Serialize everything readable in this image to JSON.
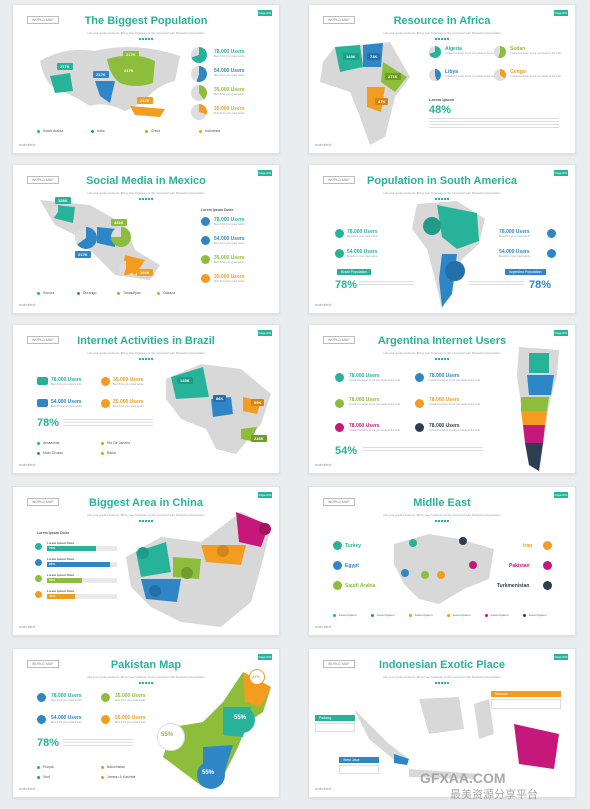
{
  "colors": {
    "teal": "#27b39a",
    "blue": "#2f86c7",
    "green": "#8cbe3c",
    "orange": "#f39c1f",
    "magenta": "#c6177b",
    "navy": "#2c3e50",
    "map": "#d8d8d8"
  },
  "common": {
    "tag": "WORLD MAP",
    "page": "Page 001",
    "sub": "just your great solutions. Bring your business to the next level with Powerful presentation",
    "brand": "unlimited"
  },
  "s1": {
    "title": "The Biggest Population",
    "pins": [
      "217K",
      "217K",
      "217K",
      "217K",
      "217K"
    ],
    "stats": [
      {
        "v": "78.000 Users",
        "t": "Best fit for your great words"
      },
      {
        "v": "54.000 Users",
        "t": "Best fit for your great words"
      },
      {
        "v": "35.000 Users",
        "t": "Best fit for your great words"
      },
      {
        "v": "35.000 Users",
        "t": "Best fit for your great words"
      }
    ],
    "legend": [
      "South Arabia",
      "India",
      "China",
      "Indonesia"
    ]
  },
  "s2": {
    "title": "Resource in Africa",
    "pins": [
      "143K",
      "73K",
      "271K",
      "47K"
    ],
    "items": [
      {
        "h": "Algeria",
        "t": "It would be better to put your ideas to the stuff"
      },
      {
        "h": "Sudan",
        "t": "It would be better to put your ideas to the stuff"
      },
      {
        "h": "Libya",
        "t": "It would be better to put your ideas to the stuff"
      },
      {
        "h": "Congo",
        "t": "It would be better to put your ideas to the stuff"
      }
    ],
    "lorem": "Lorem Ipsum",
    "pct": "48%"
  },
  "s3": {
    "title": "Social Media in Mexico",
    "pins": [
      "126K",
      "441K",
      "217K",
      "186K"
    ],
    "head": "Lorem Ipsum Dolor",
    "stats": [
      {
        "v": "78.000 Users",
        "t": "Best fit for your great words"
      },
      {
        "v": "54.000 Users",
        "t": "Best fit for your great words"
      },
      {
        "v": "35.000 Users",
        "t": "Best fit for your great words"
      },
      {
        "v": "35.000 Users",
        "t": "Best fit for your great words"
      }
    ],
    "legend": [
      "Sonora",
      "Durango",
      "Tamaulipas",
      "Oaxaca"
    ]
  },
  "s4": {
    "title": "Population in South America",
    "stats": [
      {
        "v": "78.000 Users",
        "t": "Benefit for your great words"
      },
      {
        "v": "54.000 Users",
        "t": "Benefit for your great words"
      },
      {
        "v": "78.000 Users",
        "t": "Benefit for your great words"
      },
      {
        "v": "54.000 Users",
        "t": "Benefit for your great words"
      }
    ],
    "rib1": "Brazil Population",
    "rib2": "Argentina Population",
    "pct1": "78%",
    "pct2": "78%"
  },
  "s5": {
    "title": "Internet Activities in Brazil",
    "pins": [
      "125K",
      "86K",
      "89K",
      "216K"
    ],
    "stats": [
      {
        "v": "78.000 Users",
        "t": "Best fit for your great words"
      },
      {
        "v": "35.000 Users",
        "t": "Best fit for your great words"
      },
      {
        "v": "54.000 Users",
        "t": "Best fit for your great words"
      },
      {
        "v": "35.000 Users",
        "t": "Best fit for your great words"
      }
    ],
    "pct": "78%",
    "legend": [
      "Amazonas",
      "Rio De Janeiro",
      "Mato Grosso",
      "Bahia"
    ]
  },
  "s6": {
    "title": "Argentina Internet Users",
    "stats": [
      {
        "v": "78.000 Users",
        "t": "It would be better to put your ideas to the stuff"
      },
      {
        "v": "78.000 Users",
        "t": "It would be better to put your ideas to the stuff"
      },
      {
        "v": "78.000 Users",
        "t": "It would be better to put your ideas to the stuff"
      },
      {
        "v": "78.000 Users",
        "t": "It would be better to put your ideas to the stuff"
      },
      {
        "v": "78.000 Users",
        "t": "It would be better to put your ideas to the stuff"
      },
      {
        "v": "78.000 Users",
        "t": "It would be better to put your ideas to the stuff"
      }
    ],
    "pct": "54%"
  },
  "s7": {
    "title": "Biggest Area in China",
    "head": "Lorem Ipsum Dolor",
    "bars": [
      {
        "h": "Lorem Ipsum Dolor",
        "v": "70%",
        "f": 0.7
      },
      {
        "h": "Lorem Ipsum Dolor",
        "v": "90%",
        "f": 0.9
      },
      {
        "h": "Lorem Ipsum Dolor",
        "v": "50%",
        "f": 0.5
      },
      {
        "h": "Lorem Ipsum Dolor",
        "v": "40%",
        "f": 0.4
      }
    ]
  },
  "s8": {
    "title": "Midlle East",
    "left": [
      "Turkey",
      "Egypt",
      "Saudi Arabia"
    ],
    "right": [
      "Iran",
      "Pakistan",
      "Turkmenistan"
    ],
    "legend": [
      "Lorem Ipsum",
      "Lorem Ipsum",
      "Lorem Ipsum",
      "Lorem Ipsum",
      "Lorem Ipsum",
      "Lorem Ipsum"
    ]
  },
  "s9": {
    "title": "Pakistan Map",
    "stats": [
      {
        "v": "78.000 Users",
        "t": "Best fit for your great words"
      },
      {
        "v": "35.000 Users",
        "t": "Best fit for your great words"
      },
      {
        "v": "54.000 Users",
        "t": "Best fit for your great words"
      },
      {
        "v": "55.000 Users",
        "t": "Best fit for your great words"
      }
    ],
    "pct": "78%",
    "circles": [
      "55%",
      "55%",
      "55%",
      "47%"
    ],
    "legend": [
      "Punjab",
      "Balochistan",
      "Sind",
      "Jammu & Kashmir"
    ]
  },
  "s10": {
    "title": "Indonesian Exotic Place",
    "labels": [
      "Padang",
      "Manado",
      "West Java"
    ]
  },
  "watermark": {
    "brand": "GFXAA.COM",
    "cn": "最美资源分享平台"
  }
}
